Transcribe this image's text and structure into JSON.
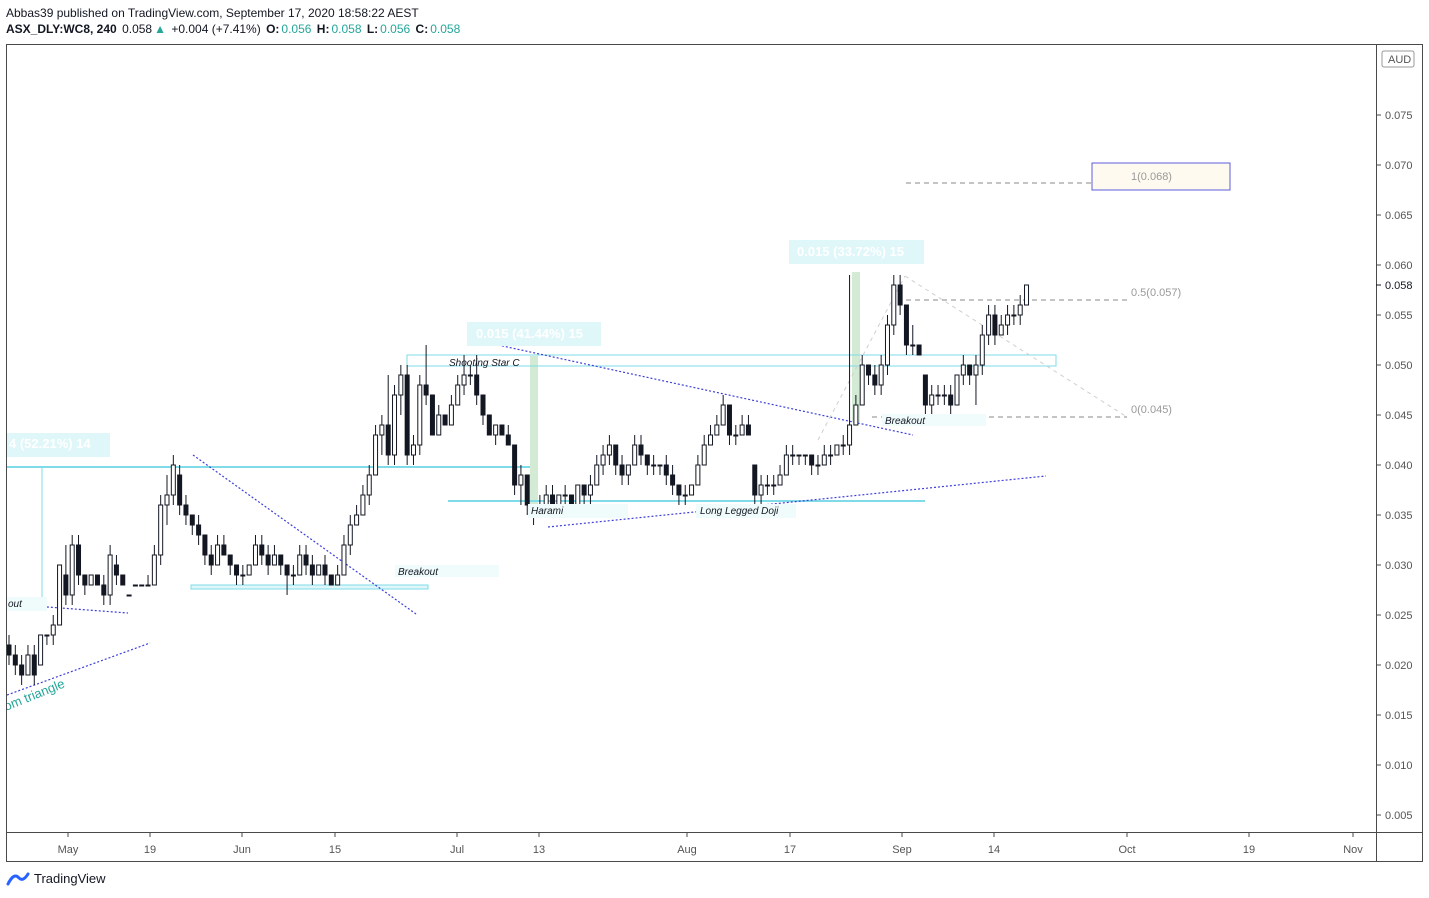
{
  "header": {
    "line1": "Abbas39 published on TradingView.com, September 17, 2020 18:58:22 AEST",
    "symbol": "ASX_DLY:WC8, 240",
    "last": "0.058",
    "change_arrow": "▲",
    "change": "+0.004 (+7.41%)",
    "o_label": "O:",
    "o_val": "0.056",
    "h_label": "H:",
    "h_val": "0.058",
    "l_label": "L:",
    "l_val": "0.056",
    "c_label": "C:",
    "c_val": "0.058"
  },
  "footer": {
    "brand": "TradingView",
    "logo_icon": "tradingview-logo-icon"
  },
  "colors": {
    "accent": "#26a69a",
    "cyan": "#7fdbe8",
    "blue_dotted": "#3f3fd8",
    "green_bar": "#c8e6c9",
    "candle": "#131722"
  },
  "chart_data": {
    "type": "candlestick",
    "currency": "AUD",
    "ylim": [
      0.001,
      0.0865
    ],
    "last_price_label": "0.058",
    "y_ticks": [
      "0.075",
      "0.070",
      "0.065",
      "0.060",
      "0.055",
      "0.050",
      "0.045",
      "0.040",
      "0.035",
      "0.030",
      "0.025",
      "0.020",
      "0.015",
      "0.010",
      "0.005"
    ],
    "x_ticks": [
      "May",
      "19",
      "Jun",
      "15",
      "Jul",
      "13",
      "Aug",
      "17",
      "Sep",
      "14",
      "Oct",
      "19",
      "Nov"
    ],
    "annotations": {
      "measure1": "4 (52.21%) 14",
      "measure2": "0.015 (41.44%) 15",
      "measure3": "0.015 (33.72%) 15",
      "shooting_star": "Shooting Star C",
      "harami": "Harami",
      "long_legged_doji": "Long Legged Doji",
      "breakout1": "Breakout",
      "breakout2": "Breakout",
      "breakout_left": "out",
      "triangle": "om triangle",
      "fib1": "1(0.068)",
      "fib05": "0.5(0.057)",
      "fib0": "0(0.045)"
    },
    "candles": [
      [
        0.022,
        0.023,
        0.02,
        0.021
      ],
      [
        0.021,
        0.022,
        0.019,
        0.02
      ],
      [
        0.02,
        0.021,
        0.018,
        0.019
      ],
      [
        0.019,
        0.022,
        0.019,
        0.021
      ],
      [
        0.021,
        0.022,
        0.018,
        0.019
      ],
      [
        0.02,
        0.023,
        0.02,
        0.023
      ],
      [
        0.023,
        0.023,
        0.022,
        0.023
      ],
      [
        0.023,
        0.025,
        0.022,
        0.024
      ],
      [
        0.024,
        0.03,
        0.024,
        0.03
      ],
      [
        0.029,
        0.032,
        0.026,
        0.027
      ],
      [
        0.027,
        0.033,
        0.026,
        0.032
      ],
      [
        0.032,
        0.033,
        0.028,
        0.029
      ],
      [
        0.029,
        0.029,
        0.027,
        0.028
      ],
      [
        0.028,
        0.029,
        0.028,
        0.029
      ],
      [
        0.029,
        0.029,
        0.028,
        0.028
      ],
      [
        0.028,
        0.029,
        0.026,
        0.027
      ],
      [
        0.027,
        0.032,
        0.026,
        0.031
      ],
      [
        0.03,
        0.031,
        0.028,
        0.029
      ],
      [
        0.029,
        0.029,
        0.028,
        0.028
      ],
      [
        0.027,
        0.027,
        0.027,
        0.027
      ],
      [
        0.028,
        0.028,
        0.028,
        0.028
      ],
      [
        0.028,
        0.028,
        0.028,
        0.028
      ],
      [
        0.028,
        0.029,
        0.028,
        0.028
      ],
      [
        0.028,
        0.032,
        0.028,
        0.031
      ],
      [
        0.031,
        0.037,
        0.03,
        0.036
      ],
      [
        0.036,
        0.039,
        0.034,
        0.037
      ],
      [
        0.037,
        0.041,
        0.036,
        0.04
      ],
      [
        0.039,
        0.04,
        0.035,
        0.036
      ],
      [
        0.036,
        0.037,
        0.034,
        0.035
      ],
      [
        0.035,
        0.035,
        0.033,
        0.034
      ],
      [
        0.034,
        0.035,
        0.032,
        0.033
      ],
      [
        0.033,
        0.033,
        0.03,
        0.031
      ],
      [
        0.031,
        0.032,
        0.029,
        0.03
      ],
      [
        0.03,
        0.033,
        0.03,
        0.032
      ],
      [
        0.032,
        0.033,
        0.031,
        0.031
      ],
      [
        0.031,
        0.031,
        0.029,
        0.03
      ],
      [
        0.03,
        0.03,
        0.028,
        0.029
      ],
      [
        0.029,
        0.03,
        0.028,
        0.029
      ],
      [
        0.029,
        0.03,
        0.029,
        0.03
      ],
      [
        0.03,
        0.033,
        0.03,
        0.032
      ],
      [
        0.032,
        0.033,
        0.03,
        0.031
      ],
      [
        0.031,
        0.032,
        0.029,
        0.03
      ],
      [
        0.03,
        0.032,
        0.03,
        0.031
      ],
      [
        0.031,
        0.031,
        0.029,
        0.03
      ],
      [
        0.03,
        0.03,
        0.027,
        0.029
      ],
      [
        0.029,
        0.03,
        0.028,
        0.029
      ],
      [
        0.029,
        0.032,
        0.029,
        0.031
      ],
      [
        0.031,
        0.032,
        0.029,
        0.03
      ],
      [
        0.03,
        0.031,
        0.028,
        0.029
      ],
      [
        0.029,
        0.03,
        0.029,
        0.03
      ],
      [
        0.03,
        0.031,
        0.028,
        0.029
      ],
      [
        0.029,
        0.029,
        0.028,
        0.028
      ],
      [
        0.028,
        0.03,
        0.028,
        0.029
      ],
      [
        0.029,
        0.033,
        0.029,
        0.032
      ],
      [
        0.032,
        0.035,
        0.031,
        0.034
      ],
      [
        0.034,
        0.036,
        0.034,
        0.035
      ],
      [
        0.035,
        0.038,
        0.035,
        0.037
      ],
      [
        0.037,
        0.04,
        0.036,
        0.039
      ],
      [
        0.039,
        0.044,
        0.039,
        0.043
      ],
      [
        0.043,
        0.045,
        0.041,
        0.044
      ],
      [
        0.044,
        0.049,
        0.04,
        0.041
      ],
      [
        0.041,
        0.048,
        0.04,
        0.047
      ],
      [
        0.047,
        0.05,
        0.045,
        0.049
      ],
      [
        0.049,
        0.05,
        0.04,
        0.041
      ],
      [
        0.041,
        0.043,
        0.04,
        0.042
      ],
      [
        0.042,
        0.049,
        0.041,
        0.048
      ],
      [
        0.048,
        0.052,
        0.046,
        0.047
      ],
      [
        0.047,
        0.047,
        0.043,
        0.043
      ],
      [
        0.043,
        0.046,
        0.043,
        0.045
      ],
      [
        0.045,
        0.045,
        0.044,
        0.044
      ],
      [
        0.044,
        0.047,
        0.044,
        0.046
      ],
      [
        0.046,
        0.049,
        0.046,
        0.048
      ],
      [
        0.048,
        0.051,
        0.047,
        0.049
      ],
      [
        0.049,
        0.05,
        0.048,
        0.049
      ],
      [
        0.049,
        0.051,
        0.046,
        0.047
      ],
      [
        0.047,
        0.047,
        0.044,
        0.045
      ],
      [
        0.045,
        0.045,
        0.043,
        0.043
      ],
      [
        0.043,
        0.044,
        0.042,
        0.044
      ],
      [
        0.044,
        0.044,
        0.043,
        0.043
      ],
      [
        0.043,
        0.044,
        0.042,
        0.042
      ],
      [
        0.042,
        0.042,
        0.037,
        0.038
      ],
      [
        0.038,
        0.04,
        0.036,
        0.039
      ],
      [
        0.039,
        0.039,
        0.035,
        0.036
      ],
      [
        0.036,
        0.036,
        0.034,
        0.035
      ],
      [
        0.035,
        0.037,
        0.035,
        0.036
      ],
      [
        0.036,
        0.038,
        0.036,
        0.037
      ],
      [
        0.037,
        0.038,
        0.036,
        0.036
      ],
      [
        0.036,
        0.037,
        0.036,
        0.037
      ],
      [
        0.037,
        0.038,
        0.036,
        0.037
      ],
      [
        0.037,
        0.037,
        0.036,
        0.036
      ],
      [
        0.036,
        0.038,
        0.036,
        0.038
      ],
      [
        0.038,
        0.038,
        0.036,
        0.037
      ],
      [
        0.037,
        0.039,
        0.036,
        0.038
      ],
      [
        0.038,
        0.041,
        0.038,
        0.04
      ],
      [
        0.04,
        0.042,
        0.039,
        0.041
      ],
      [
        0.041,
        0.043,
        0.04,
        0.042
      ],
      [
        0.042,
        0.042,
        0.039,
        0.04
      ],
      [
        0.04,
        0.041,
        0.038,
        0.039
      ],
      [
        0.039,
        0.04,
        0.038,
        0.04
      ],
      [
        0.04,
        0.043,
        0.04,
        0.042
      ],
      [
        0.042,
        0.043,
        0.04,
        0.041
      ],
      [
        0.041,
        0.041,
        0.039,
        0.04
      ],
      [
        0.04,
        0.041,
        0.039,
        0.04
      ],
      [
        0.04,
        0.04,
        0.039,
        0.04
      ],
      [
        0.04,
        0.041,
        0.038,
        0.039
      ],
      [
        0.039,
        0.04,
        0.037,
        0.038
      ],
      [
        0.038,
        0.038,
        0.036,
        0.037
      ],
      [
        0.037,
        0.038,
        0.036,
        0.037
      ],
      [
        0.037,
        0.038,
        0.037,
        0.038
      ],
      [
        0.038,
        0.041,
        0.038,
        0.04
      ],
      [
        0.04,
        0.043,
        0.04,
        0.042
      ],
      [
        0.042,
        0.044,
        0.042,
        0.043
      ],
      [
        0.043,
        0.045,
        0.043,
        0.044
      ],
      [
        0.044,
        0.047,
        0.044,
        0.046
      ],
      [
        0.046,
        0.046,
        0.042,
        0.043
      ],
      [
        0.043,
        0.044,
        0.042,
        0.043
      ],
      [
        0.043,
        0.045,
        0.043,
        0.044
      ],
      [
        0.044,
        0.045,
        0.043,
        0.043
      ],
      [
        0.04,
        0.04,
        0.036,
        0.037
      ],
      [
        0.037,
        0.039,
        0.036,
        0.038
      ],
      [
        0.038,
        0.039,
        0.037,
        0.038
      ],
      [
        0.038,
        0.039,
        0.037,
        0.038
      ],
      [
        0.038,
        0.04,
        0.038,
        0.039
      ],
      [
        0.039,
        0.042,
        0.039,
        0.041
      ],
      [
        0.041,
        0.042,
        0.04,
        0.041
      ],
      [
        0.041,
        0.041,
        0.04,
        0.041
      ],
      [
        0.041,
        0.041,
        0.04,
        0.041
      ],
      [
        0.041,
        0.041,
        0.039,
        0.04
      ],
      [
        0.04,
        0.041,
        0.039,
        0.04
      ],
      [
        0.04,
        0.042,
        0.04,
        0.041
      ],
      [
        0.041,
        0.042,
        0.04,
        0.041
      ],
      [
        0.041,
        0.042,
        0.041,
        0.042
      ],
      [
        0.042,
        0.043,
        0.041,
        0.042
      ],
      [
        0.042,
        0.059,
        0.041,
        0.044
      ],
      [
        0.044,
        0.047,
        0.044,
        0.046
      ],
      [
        0.046,
        0.051,
        0.046,
        0.05
      ],
      [
        0.05,
        0.05,
        0.048,
        0.049
      ],
      [
        0.049,
        0.05,
        0.047,
        0.048
      ],
      [
        0.048,
        0.051,
        0.047,
        0.05
      ],
      [
        0.05,
        0.055,
        0.049,
        0.054
      ],
      [
        0.054,
        0.059,
        0.053,
        0.058
      ],
      [
        0.058,
        0.059,
        0.055,
        0.056
      ],
      [
        0.056,
        0.056,
        0.051,
        0.052
      ],
      [
        0.052,
        0.054,
        0.051,
        0.052
      ],
      [
        0.052,
        0.052,
        0.051,
        0.051
      ],
      [
        0.049,
        0.049,
        0.045,
        0.046
      ],
      [
        0.046,
        0.048,
        0.045,
        0.047
      ],
      [
        0.047,
        0.048,
        0.046,
        0.047
      ],
      [
        0.047,
        0.048,
        0.046,
        0.047
      ],
      [
        0.047,
        0.048,
        0.045,
        0.046
      ],
      [
        0.046,
        0.049,
        0.046,
        0.049
      ],
      [
        0.049,
        0.051,
        0.048,
        0.05
      ],
      [
        0.05,
        0.05,
        0.048,
        0.049
      ],
      [
        0.049,
        0.051,
        0.046,
        0.05
      ],
      [
        0.05,
        0.054,
        0.049,
        0.053
      ],
      [
        0.053,
        0.056,
        0.052,
        0.055
      ],
      [
        0.055,
        0.056,
        0.052,
        0.053
      ],
      [
        0.053,
        0.055,
        0.053,
        0.054
      ],
      [
        0.054,
        0.056,
        0.053,
        0.055
      ],
      [
        0.055,
        0.056,
        0.054,
        0.055
      ],
      [
        0.055,
        0.057,
        0.054,
        0.056
      ],
      [
        0.056,
        0.058,
        0.056,
        0.058
      ]
    ]
  }
}
